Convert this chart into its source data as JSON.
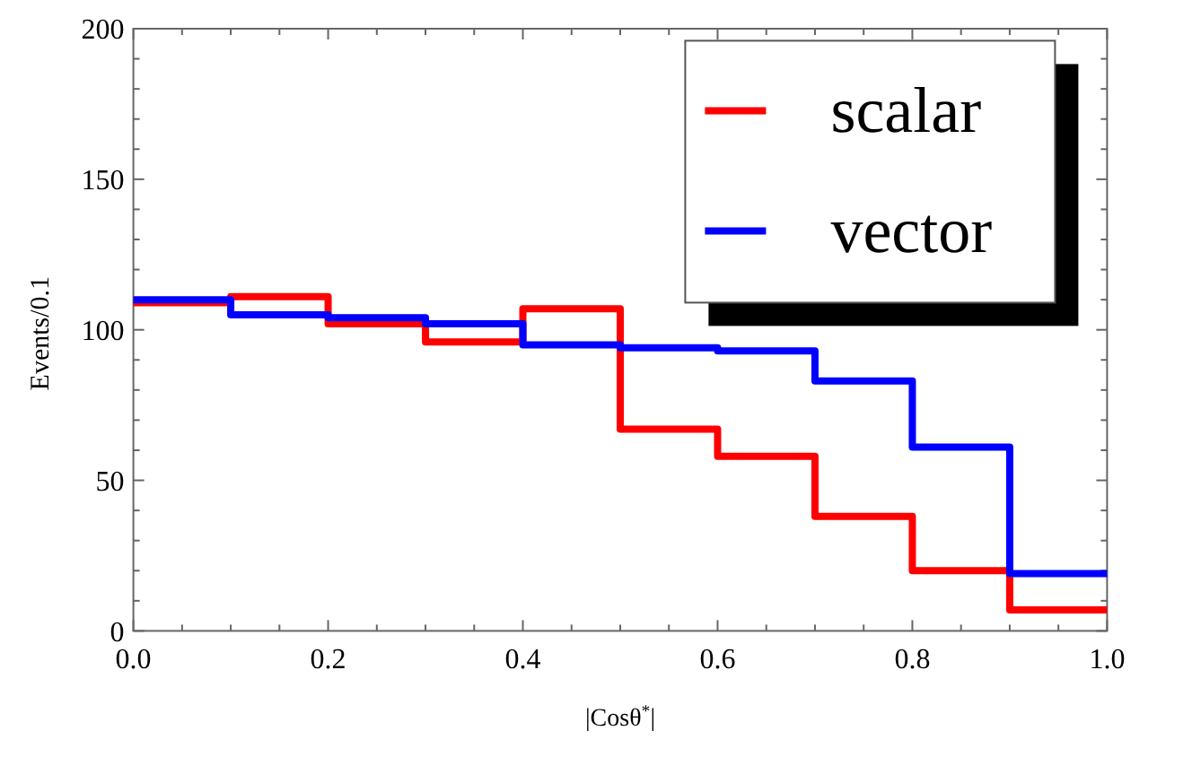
{
  "chart_data": {
    "type": "histogram",
    "xlabel": "|Cosθ$^{*}$|",
    "ylabel": "Events/0.1",
    "bins": [
      0,
      0.1,
      0.2,
      0.3,
      0.4,
      0.5,
      0.6,
      0.7,
      0.8,
      0.9,
      1.0
    ],
    "series": [
      {
        "name": "scalar",
        "color": "#ff0000",
        "values": [
          109,
          111,
          102,
          96,
          107,
          67,
          58,
          38,
          20,
          7
        ]
      },
      {
        "name": "vector",
        "color": "#0000ff",
        "values": [
          110,
          105,
          104,
          102,
          95,
          94,
          93,
          83,
          61,
          19
        ]
      }
    ],
    "xlim": [
      0,
      1
    ],
    "ylim": [
      0,
      200
    ],
    "xticks": [
      {
        "value": 0,
        "label": "0.0"
      },
      {
        "value": 0.05,
        "label": null
      },
      {
        "value": 0.1,
        "label": null
      },
      {
        "value": 0.15,
        "label": null
      },
      {
        "value": 0.2,
        "label": "0.2"
      },
      {
        "value": 0.25,
        "label": null
      },
      {
        "value": 0.3,
        "label": null
      },
      {
        "value": 0.35,
        "label": null
      },
      {
        "value": 0.4,
        "label": "0.4"
      },
      {
        "value": 0.45,
        "label": null
      },
      {
        "value": 0.5,
        "label": null
      },
      {
        "value": 0.55,
        "label": null
      },
      {
        "value": 0.6,
        "label": "0.6"
      },
      {
        "value": 0.65,
        "label": null
      },
      {
        "value": 0.7,
        "label": null
      },
      {
        "value": 0.75,
        "label": null
      },
      {
        "value": 0.8,
        "label": "0.8"
      },
      {
        "value": 0.85,
        "label": null
      },
      {
        "value": 0.9,
        "label": null
      },
      {
        "value": 0.95,
        "label": null
      },
      {
        "value": 1.0,
        "label": "1.0"
      }
    ],
    "yticks": [
      0,
      {
        "value": 10,
        "label": null
      },
      {
        "value": 20,
        "label": null
      },
      {
        "value": 30,
        "label": null
      },
      {
        "value": 40,
        "label": null
      },
      50,
      {
        "value": 60,
        "label": null
      },
      {
        "value": 70,
        "label": null
      },
      {
        "value": 80,
        "label": null
      },
      {
        "value": 90,
        "label": null
      },
      100,
      {
        "value": 110,
        "label": null
      },
      {
        "value": 120,
        "label": null
      },
      {
        "value": 130,
        "label": null
      },
      {
        "value": 140,
        "label": null
      },
      150,
      {
        "value": 160,
        "label": null
      },
      {
        "value": 170,
        "label": null
      },
      {
        "value": 180,
        "label": null
      },
      {
        "value": 190,
        "label": null
      },
      200
    ],
    "legend": "top right"
  }
}
